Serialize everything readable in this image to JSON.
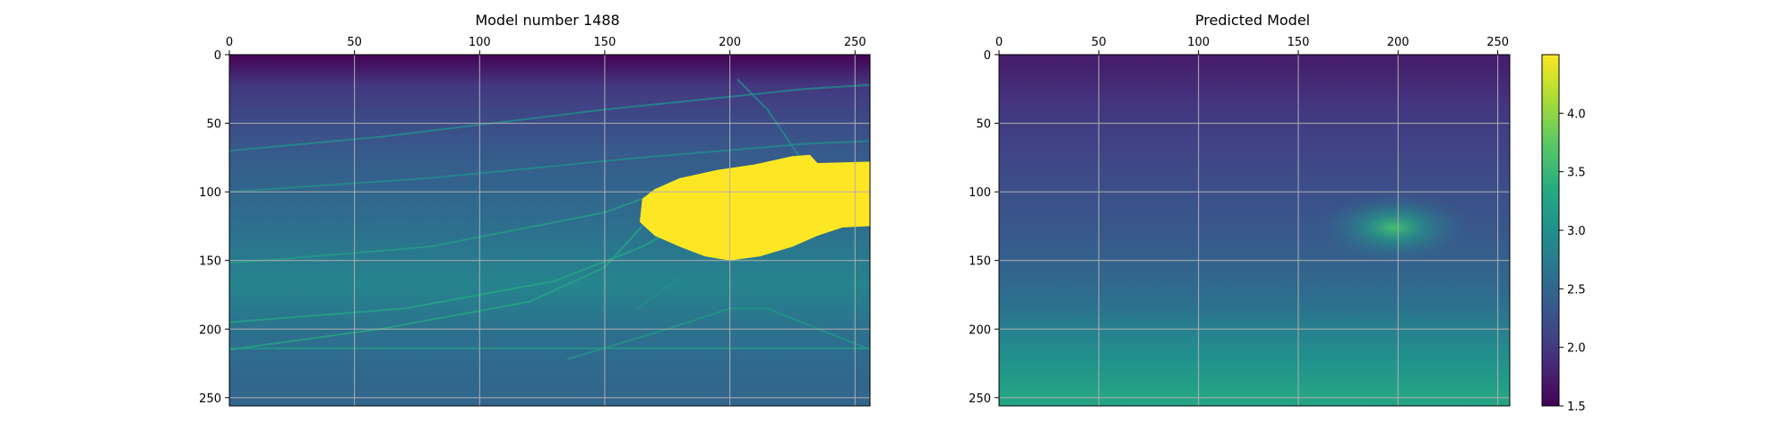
{
  "chart_data": [
    {
      "type": "heatmap",
      "title": "Model number 1488",
      "x_ticks": [
        "0",
        "50",
        "100",
        "150",
        "200",
        "250"
      ],
      "y_ticks": [
        "0",
        "50",
        "100",
        "150",
        "200",
        "250"
      ],
      "xlim": [
        0,
        256
      ],
      "ylim": [
        0,
        256
      ],
      "x_axis_position": "top",
      "y_axis_inverted": true,
      "grid": true,
      "colormap": "viridis",
      "value_range": [
        1.5,
        4.5
      ],
      "layers": [
        {
          "from_depth": 0,
          "to_depth": 5,
          "value": 1.55
        },
        {
          "from_depth": 5,
          "to_depth": 40,
          "value": 2.0
        },
        {
          "from_depth": 40,
          "to_depth": 100,
          "value": 2.35
        },
        {
          "from_depth": 100,
          "to_depth": 150,
          "value": 2.6
        },
        {
          "from_depth": 150,
          "to_depth": 185,
          "value": 2.85
        },
        {
          "from_depth": 185,
          "to_depth": 225,
          "value": 2.6
        },
        {
          "from_depth": 225,
          "to_depth": 256,
          "value": 2.5
        }
      ],
      "anomaly": {
        "label": "salt body",
        "value": 4.5,
        "outline": [
          [
            165,
            105
          ],
          [
            170,
            98
          ],
          [
            180,
            90
          ],
          [
            195,
            84
          ],
          [
            210,
            80
          ],
          [
            225,
            74
          ],
          [
            232,
            73
          ],
          [
            235,
            79
          ],
          [
            256,
            78
          ],
          [
            256,
            125
          ],
          [
            245,
            126
          ],
          [
            235,
            132
          ],
          [
            225,
            140
          ],
          [
            212,
            147
          ],
          [
            200,
            150
          ],
          [
            190,
            147
          ],
          [
            180,
            140
          ],
          [
            170,
            132
          ],
          [
            164,
            122
          ]
        ]
      },
      "reflector_lines": [
        {
          "value": 3.0,
          "points": [
            [
              0,
              70
            ],
            [
              60,
              60
            ],
            [
              150,
              40
            ],
            [
              230,
              25
            ],
            [
              256,
              22
            ]
          ]
        },
        {
          "value": 3.0,
          "points": [
            [
              0,
              100
            ],
            [
              80,
              90
            ],
            [
              165,
              75
            ],
            [
              230,
              65
            ],
            [
              256,
              63
            ]
          ]
        },
        {
          "value": 3.2,
          "points": [
            [
              0,
              152
            ],
            [
              80,
              140
            ],
            [
              150,
              115
            ],
            [
              165,
              105
            ]
          ]
        },
        {
          "value": 3.3,
          "points": [
            [
              0,
              195
            ],
            [
              70,
              185
            ],
            [
              130,
              165
            ],
            [
              165,
              140
            ],
            [
              175,
              130
            ]
          ]
        },
        {
          "value": 3.3,
          "points": [
            [
              0,
              215
            ],
            [
              60,
              200
            ],
            [
              120,
              180
            ],
            [
              150,
              155
            ],
            [
              165,
              125
            ]
          ]
        },
        {
          "value": 3.2,
          "points": [
            [
              0,
              214
            ],
            [
              256,
              214
            ]
          ]
        },
        {
          "value": 3.1,
          "points": [
            [
              135,
              222
            ],
            [
              175,
              200
            ],
            [
              200,
              185
            ],
            [
              215,
              185
            ],
            [
              256,
              215
            ]
          ]
        },
        {
          "value": 3.0,
          "points": [
            [
              163,
              185
            ],
            [
              182,
              160
            ]
          ]
        },
        {
          "value": 3.0,
          "points": [
            [
              203,
              18
            ],
            [
              215,
              40
            ],
            [
              228,
              75
            ]
          ]
        }
      ]
    },
    {
      "type": "heatmap",
      "title": "Predicted Model",
      "x_ticks": [
        "0",
        "50",
        "100",
        "150",
        "200",
        "250"
      ],
      "y_ticks": [
        "0",
        "50",
        "100",
        "150",
        "200",
        "250"
      ],
      "xlim": [
        0,
        256
      ],
      "ylim": [
        0,
        256
      ],
      "x_axis_position": "top",
      "y_axis_inverted": true,
      "grid": true,
      "colormap": "viridis",
      "value_range": [
        1.5,
        4.5
      ],
      "layers": [
        {
          "from_depth": 0,
          "to_depth": 10,
          "value": 1.75
        },
        {
          "from_depth": 10,
          "to_depth": 70,
          "value": 2.0
        },
        {
          "from_depth": 70,
          "to_depth": 110,
          "value": 2.2
        },
        {
          "from_depth": 110,
          "to_depth": 160,
          "value": 2.35
        },
        {
          "from_depth": 160,
          "to_depth": 200,
          "value": 2.6
        },
        {
          "from_depth": 200,
          "to_depth": 240,
          "value": 3.0
        },
        {
          "from_depth": 240,
          "to_depth": 256,
          "value": 3.25
        }
      ],
      "anomaly": {
        "label": "bright spot",
        "value": 3.6,
        "center": [
          198,
          126
        ]
      }
    }
  ],
  "colorbar": {
    "ticks": [
      "1.5",
      "2.0",
      "2.5",
      "3.0",
      "3.5",
      "4.0"
    ],
    "tick_values": [
      1.5,
      2.0,
      2.5,
      3.0,
      3.5,
      4.0
    ],
    "range": [
      1.5,
      4.5
    ],
    "colormap": "viridis"
  }
}
